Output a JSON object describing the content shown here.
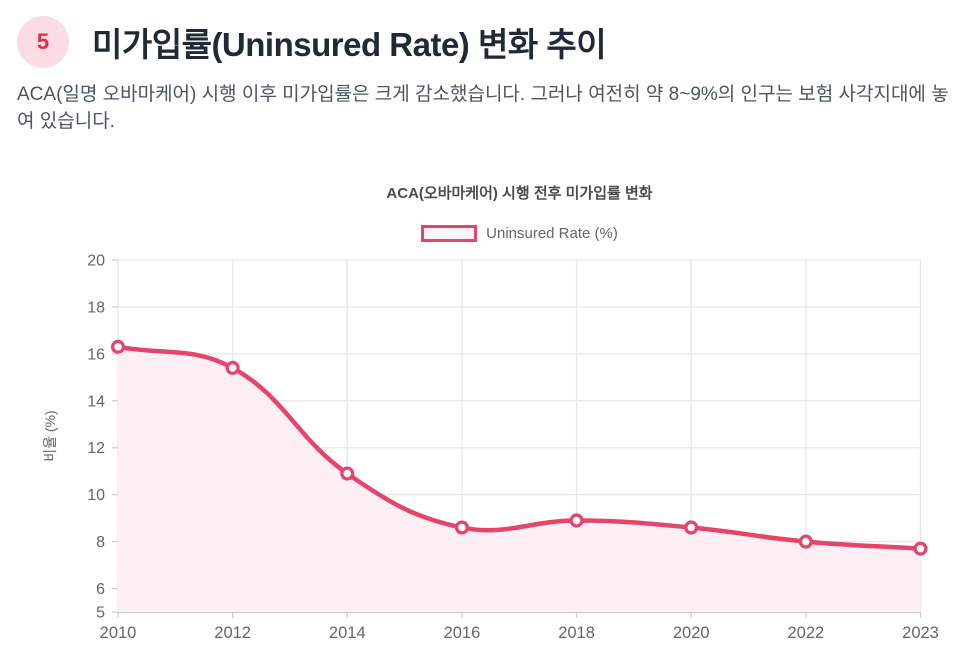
{
  "header": {
    "badge": "5",
    "title": "미가입률(Uninsured Rate) 변화 추이"
  },
  "description": "ACA(일명 오바마케어) 시행 이후 미가입률은 크게 감소했습니다. 그러나 여전히 약 8~9%의 인구는 보험 사각지대에 놓여 있습니다.",
  "chart_data": {
    "type": "area",
    "title": "ACA(오바마케어) 시행 전후 미가입률 변화",
    "categories": [
      "2010",
      "2012",
      "2014",
      "2016",
      "2018",
      "2020",
      "2022",
      "2023"
    ],
    "series": [
      {
        "name": "Uninsured Rate (%)",
        "values": [
          16.3,
          15.4,
          10.9,
          8.6,
          8.9,
          8.6,
          8.0,
          7.7
        ]
      }
    ],
    "xlabel": "",
    "ylabel": "비율 (%)",
    "ylim": [
      5,
      20
    ],
    "yticks": [
      5,
      6,
      8,
      10,
      12,
      14,
      16,
      18,
      20
    ],
    "grid": true,
    "legend_position": "top",
    "line_tension": 0.4,
    "colors": {
      "line": "#e5456a",
      "area": "#fdeff3",
      "point_fill": "#ffffff",
      "grid": "#e7e7e7",
      "axis_border": "#b9b9b9",
      "tick": "#cfcfcf",
      "tick_label": "#666666",
      "title": "#4c4c4c",
      "badge_bg": "#fbdce2",
      "badge_text": "#e12e45"
    }
  }
}
